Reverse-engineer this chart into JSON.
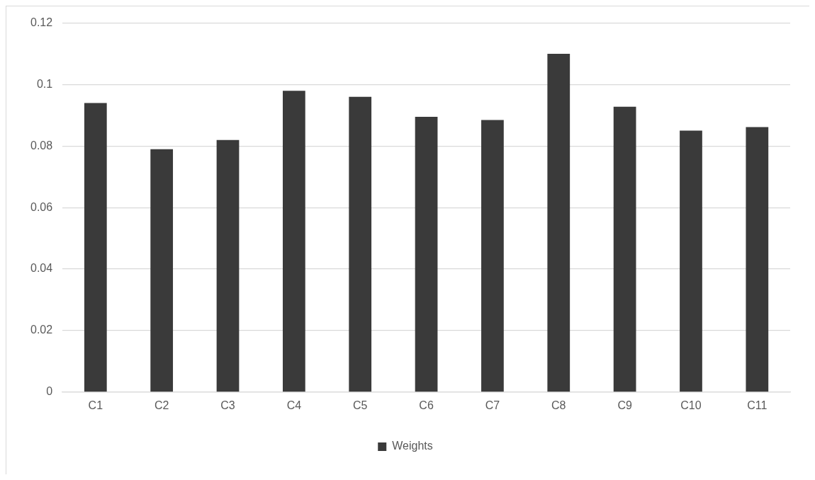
{
  "chart_data": {
    "type": "bar",
    "categories": [
      "C1",
      "C2",
      "C3",
      "C4",
      "C5",
      "C6",
      "C7",
      "C8",
      "C9",
      "C10",
      "C11"
    ],
    "series": [
      {
        "name": "Weights",
        "color": "#3a3a3a",
        "values": [
          0.094,
          0.079,
          0.082,
          0.098,
          0.096,
          0.0895,
          0.0885,
          0.11,
          0.0928,
          0.085,
          0.0862
        ]
      }
    ],
    "ylim": [
      0,
      0.12
    ],
    "yticks": [
      0,
      0.02,
      0.04,
      0.06,
      0.08,
      0.1,
      0.12
    ],
    "grid": "y",
    "legend": "bottom"
  }
}
